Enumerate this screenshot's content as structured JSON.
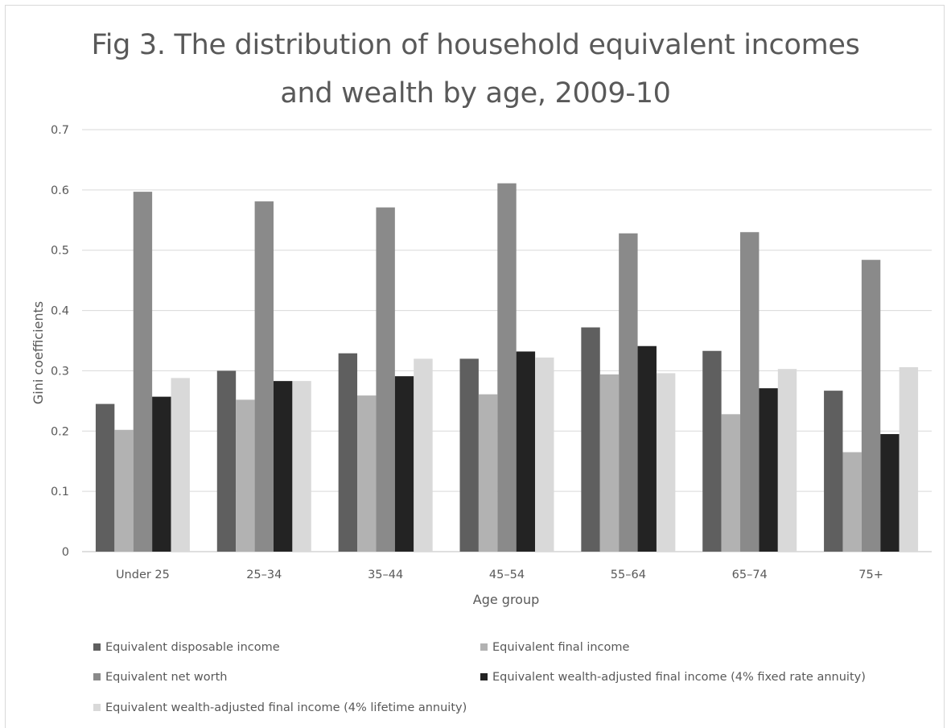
{
  "chart_data": {
    "type": "bar",
    "title_lines": [
      "Fig 3. The distribution of household equivalent incomes",
      "and wealth by age, 2009-10"
    ],
    "xlabel": "Age group",
    "ylabel": "Gini coefficients",
    "ylim": [
      0,
      0.7
    ],
    "yticks": [
      "0",
      "0.1",
      "0.2",
      "0.3",
      "0.4",
      "0.5",
      "0.6",
      "0.7"
    ],
    "grid": true,
    "legend_position": "bottom",
    "categories": [
      "Under 25",
      "25–34",
      "35–44",
      "45–54",
      "55–64",
      "65–74",
      "75+"
    ],
    "series": [
      {
        "name": "Equivalent disposable income",
        "color": "#5f5f5f",
        "values": [
          0.245,
          0.3,
          0.329,
          0.32,
          0.372,
          0.333,
          0.267
        ]
      },
      {
        "name": "Equivalent final income",
        "color": "#b2b2b2",
        "values": [
          0.202,
          0.252,
          0.259,
          0.261,
          0.294,
          0.228,
          0.165
        ]
      },
      {
        "name": "Equivalent net worth",
        "color": "#8a8a8a",
        "values": [
          0.597,
          0.581,
          0.571,
          0.611,
          0.528,
          0.53,
          0.484
        ]
      },
      {
        "name": "Equivalent wealth-adjusted final income (4% fixed rate annuity)",
        "color": "#232323",
        "values": [
          0.257,
          0.283,
          0.291,
          0.332,
          0.341,
          0.271,
          0.195
        ]
      },
      {
        "name": "Equivalent wealth-adjusted final income (4% lifetime annuity)",
        "color": "#d9d9d9",
        "values": [
          0.288,
          0.283,
          0.32,
          0.322,
          0.296,
          0.303,
          0.306
        ]
      }
    ]
  }
}
